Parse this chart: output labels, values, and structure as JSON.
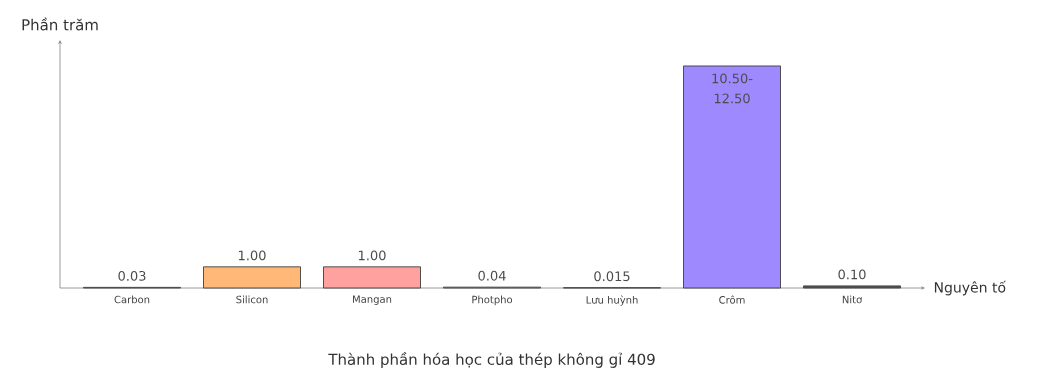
{
  "chart_data": {
    "type": "bar",
    "title": "Thành phần hóa học của thép không gỉ 409",
    "xlabel": "Nguyên tố",
    "ylabel": "Phần trăm",
    "categories": [
      "Carbon",
      "Silicon",
      "Mangan",
      "Photpho",
      "Lưu huỳnh",
      "Crôm",
      "Nitơ"
    ],
    "values": [
      0.03,
      1.0,
      1.0,
      0.04,
      0.015,
      10.5,
      0.1
    ],
    "value_labels": [
      "0.03",
      "1.00",
      "1.00",
      "0.04",
      "0.015",
      "10.50-12.50",
      "0.10"
    ],
    "colors": [
      "#b8b8b8",
      "#ffb877",
      "#ffa19e",
      "#b8b8b8",
      "#b8b8b8",
      "#9f89ff",
      "#555555"
    ]
  }
}
